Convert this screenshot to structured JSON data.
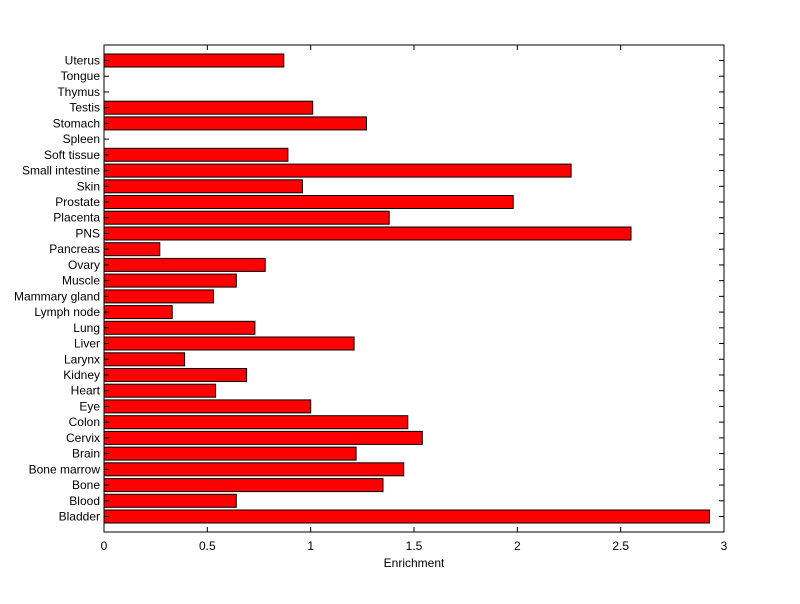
{
  "chart_data": {
    "type": "bar",
    "orientation": "horizontal",
    "xlabel": "Enrichment",
    "ylabel": "",
    "xlim": [
      0,
      3
    ],
    "xticks": [
      "0",
      "0.5",
      "1",
      "1.5",
      "2",
      "2.5",
      "3"
    ],
    "grid": false,
    "legend": "none",
    "bar_color": "#ff0000",
    "categories": [
      "Uterus",
      "Tongue",
      "Thymus",
      "Testis",
      "Stomach",
      "Spleen",
      "Soft tissue",
      "Small intestine",
      "Skin",
      "Prostate",
      "Placenta",
      "PNS",
      "Pancreas",
      "Ovary",
      "Muscle",
      "Mammary gland",
      "Lymph node",
      "Lung",
      "Liver",
      "Larynx",
      "Kidney",
      "Heart",
      "Eye",
      "Colon",
      "Cervix",
      "Brain",
      "Bone marrow",
      "Bone",
      "Blood",
      "Bladder"
    ],
    "values": [
      0.87,
      0,
      0,
      1.01,
      1.27,
      0,
      0.89,
      2.26,
      0.96,
      1.98,
      1.38,
      2.55,
      0.27,
      0.78,
      0.64,
      0.53,
      0.33,
      0.73,
      1.21,
      0.39,
      0.69,
      0.54,
      1.0,
      1.47,
      1.54,
      1.22,
      1.45,
      1.35,
      0.64,
      2.93
    ]
  }
}
